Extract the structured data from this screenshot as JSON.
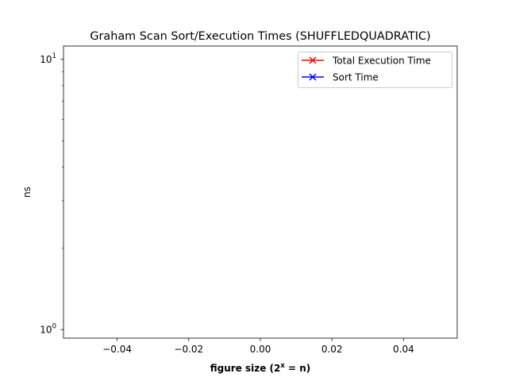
{
  "chart_data": {
    "type": "line",
    "title": "Graham Scan Sort/Execution Times (SHUFFLEDQUADRATIC)",
    "xlabel": "figure size (2",
    "xlabel_sup": "x",
    "xlabel_tail": " = n)",
    "ylabel": "ns",
    "xlim": [
      -0.055,
      0.055
    ],
    "x_ticks": [
      -0.04,
      -0.02,
      0.0,
      0.02,
      0.04
    ],
    "x_tick_labels": [
      "−0.04",
      "−0.02",
      "0.00",
      "0.02",
      "0.04"
    ],
    "y_scale": "log",
    "ylim": [
      0.93,
      11.2
    ],
    "y_major_ticks": [
      1,
      10
    ],
    "y_tick_labels": [
      {
        "base": "10",
        "exp": "0"
      },
      {
        "base": "10",
        "exp": "1"
      }
    ],
    "grid": false,
    "legend_position": "top-right",
    "series": [
      {
        "name": "Total Execution Time",
        "color": "#ff0000",
        "marker": "x",
        "x": [],
        "y": []
      },
      {
        "name": "Sort Time",
        "color": "#0000ff",
        "marker": "x",
        "x": [],
        "y": []
      }
    ]
  }
}
